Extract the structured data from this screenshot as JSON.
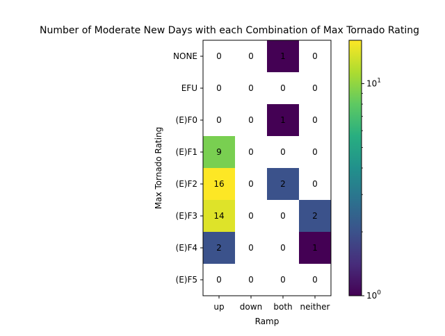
{
  "chart_data": {
    "type": "heatmap",
    "title": "Number of Moderate New Days with each Combination of Max Tornado Rating",
    "xlabel": "Ramp",
    "ylabel": "Max Tornado Rating",
    "x_categories": [
      "up",
      "down",
      "both",
      "neither"
    ],
    "y_categories": [
      "NONE",
      "EFU",
      "(E)F0",
      "(E)F1",
      "(E)F2",
      "(E)F3",
      "(E)F4",
      "(E)F5"
    ],
    "values": [
      [
        0,
        0,
        1,
        0
      ],
      [
        0,
        0,
        0,
        0
      ],
      [
        0,
        0,
        1,
        0
      ],
      [
        9,
        0,
        0,
        0
      ],
      [
        16,
        0,
        2,
        0
      ],
      [
        14,
        0,
        0,
        2
      ],
      [
        2,
        0,
        0,
        1
      ],
      [
        0,
        0,
        0,
        0
      ]
    ],
    "colormap": "viridis",
    "color_scale": "log",
    "color_range": [
      1,
      16
    ],
    "zero_cells": "blank (white)",
    "colorbar": {
      "major_ticks": [
        1,
        10
      ],
      "tick_labels": [
        "10^0",
        "10^1"
      ],
      "minor_ticks": [
        2,
        3,
        4,
        5,
        6,
        7,
        8,
        9
      ]
    },
    "grid": false,
    "legend": "colorbar at right"
  }
}
